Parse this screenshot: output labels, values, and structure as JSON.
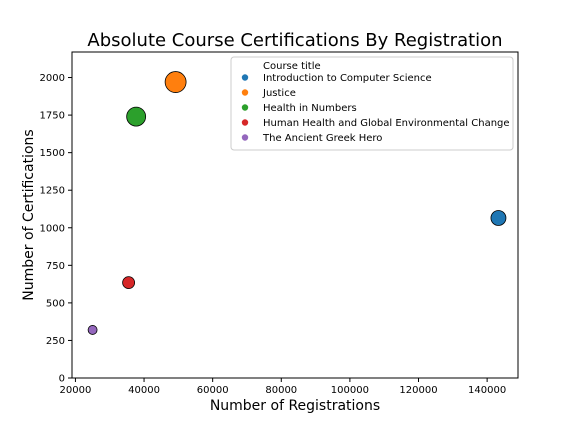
{
  "chart_data": {
    "type": "scatter",
    "title": "Absolute Course Certifications By Registration",
    "xlabel": "Number of Registrations",
    "ylabel": "Number of Certifications",
    "xlim": [
      19000,
      149000
    ],
    "ylim": [
      0,
      2170
    ],
    "x_ticks": [
      20000,
      40000,
      60000,
      80000,
      100000,
      120000,
      140000
    ],
    "y_ticks": [
      0,
      250,
      500,
      750,
      1000,
      1250,
      1500,
      1750,
      2000
    ],
    "grid": false,
    "legend": {
      "title": "Course title",
      "placement": "top-right"
    },
    "series": [
      {
        "name": "Introduction to Computer Science",
        "color": "#1f77b4",
        "x": 143300,
        "y": 1065,
        "size_rank": 3
      },
      {
        "name": "Justice",
        "color": "#ff7f0e",
        "x": 49200,
        "y": 1970,
        "size_rank": 5
      },
      {
        "name": "Health in Numbers",
        "color": "#2ca02c",
        "x": 37700,
        "y": 1740,
        "size_rank": 4
      },
      {
        "name": "Human Health and Global Environmental Change",
        "color": "#d62728",
        "x": 35500,
        "y": 635,
        "size_rank": 2
      },
      {
        "name": "The Ancient Greek Hero",
        "color": "#9467bd",
        "x": 25000,
        "y": 320,
        "size_rank": 1
      }
    ]
  }
}
